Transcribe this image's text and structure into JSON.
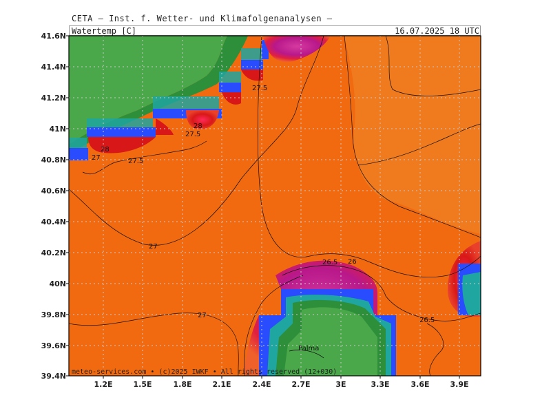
{
  "header": {
    "title": "CETA — Inst. f. Wetter- und Klimafolgenanalysen —",
    "field": "Watertemp [C]",
    "valid_time": "16.07.2025 18 UTC"
  },
  "footer": "meteo-services.com • (c)2025 IWKF • All rights reserved (12+030)",
  "axes": {
    "lat_labels": [
      "41.6N",
      "41.4N",
      "41.2N",
      "41N",
      "40.8N",
      "40.6N",
      "40.4N",
      "40.2N",
      "40N",
      "39.8N",
      "39.6N",
      "39.4N"
    ],
    "lon_labels": [
      "1.2E",
      "1.5E",
      "1.8E",
      "2.1E",
      "2.4E",
      "2.7E",
      "3E",
      "3.3E",
      "3.6E",
      "3.9E"
    ]
  },
  "contour_labels": [
    "27",
    "28",
    "27.5",
    "27",
    "27.5",
    "28",
    "27.5",
    "27",
    "26.5",
    "26",
    "27",
    "26.5"
  ],
  "places": [
    "Palma"
  ],
  "colors": {
    "sea_main": "#f07a1e",
    "sea_warm": "#f26a10",
    "land_green": "#4aa84a",
    "land_dark": "#2e8f3a",
    "coast_blue": "#2a4cff",
    "coast_teal": "#1fa6a0",
    "hot_red": "#e02020",
    "hot_magenta": "#c8208a"
  }
}
